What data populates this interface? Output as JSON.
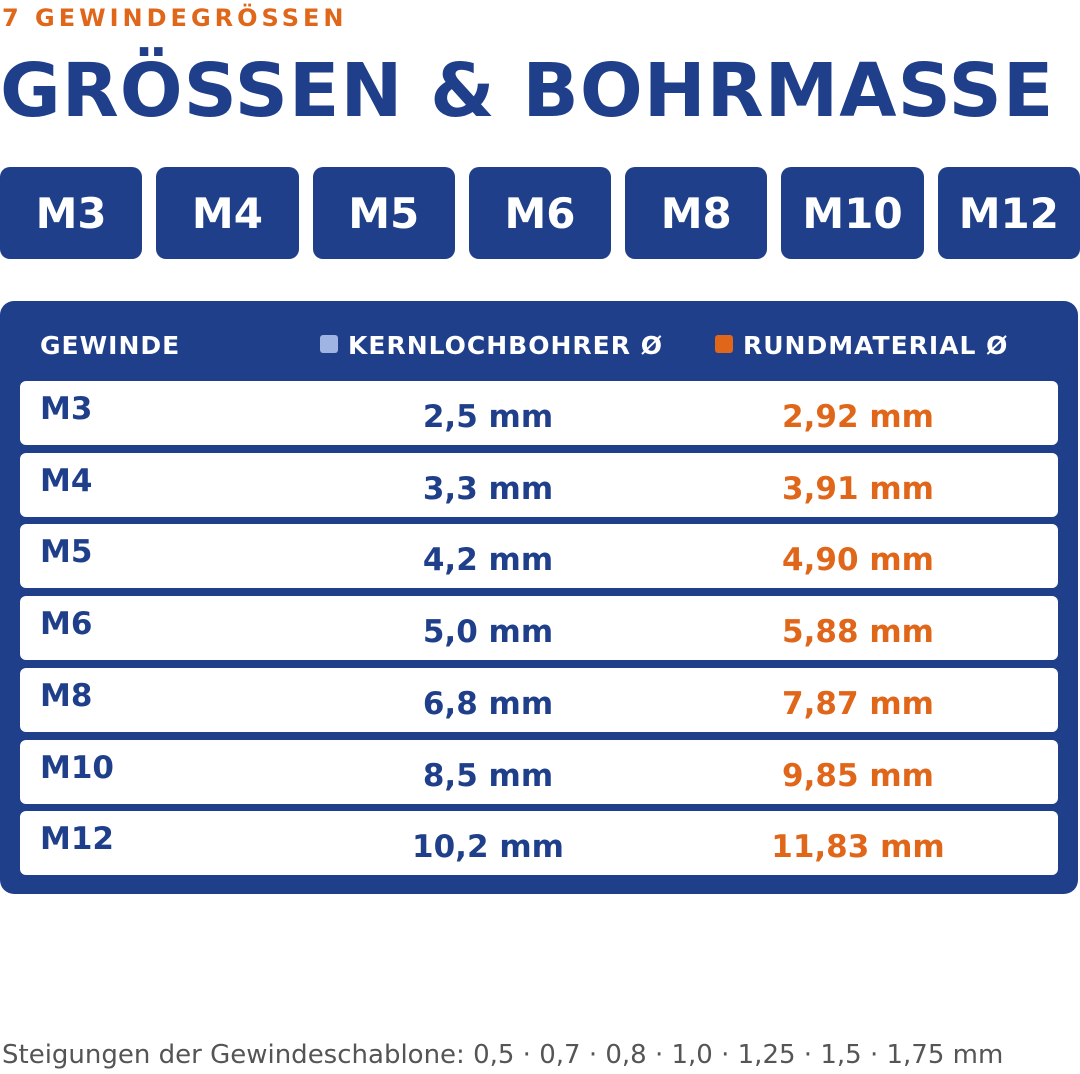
{
  "header": {
    "eyebrow": "7 GEWINDEGRÖSSEN",
    "title": "GRÖSSEN & BOHRMASSE"
  },
  "sizes": [
    "M3",
    "M4",
    "M5",
    "M6",
    "M8",
    "M10",
    "M12"
  ],
  "table": {
    "headers": [
      "GEWINDE",
      "KERNLOCHBOHRER Ø",
      "RUNDMATERIAL Ø"
    ],
    "rows": [
      [
        "M3",
        "2,5 mm",
        "2,92 mm"
      ],
      [
        "M4",
        "3,3 mm",
        "3,91 mm"
      ],
      [
        "M5",
        "4,2 mm",
        "4,90 mm"
      ],
      [
        "M6",
        "5,0 mm",
        "5,88 mm"
      ],
      [
        "M8",
        "6,8 mm",
        "7,87 mm"
      ],
      [
        "M10",
        "8,5 mm",
        "9,85 mm"
      ],
      [
        "M12",
        "10,2 mm",
        "11,83 mm"
      ]
    ]
  },
  "footer": "Steigungen der Gewindeschablone: 0,5 · 0,7 · 0,8 · 1,0 · 1,25 · 1,5 · 1,75 mm"
}
